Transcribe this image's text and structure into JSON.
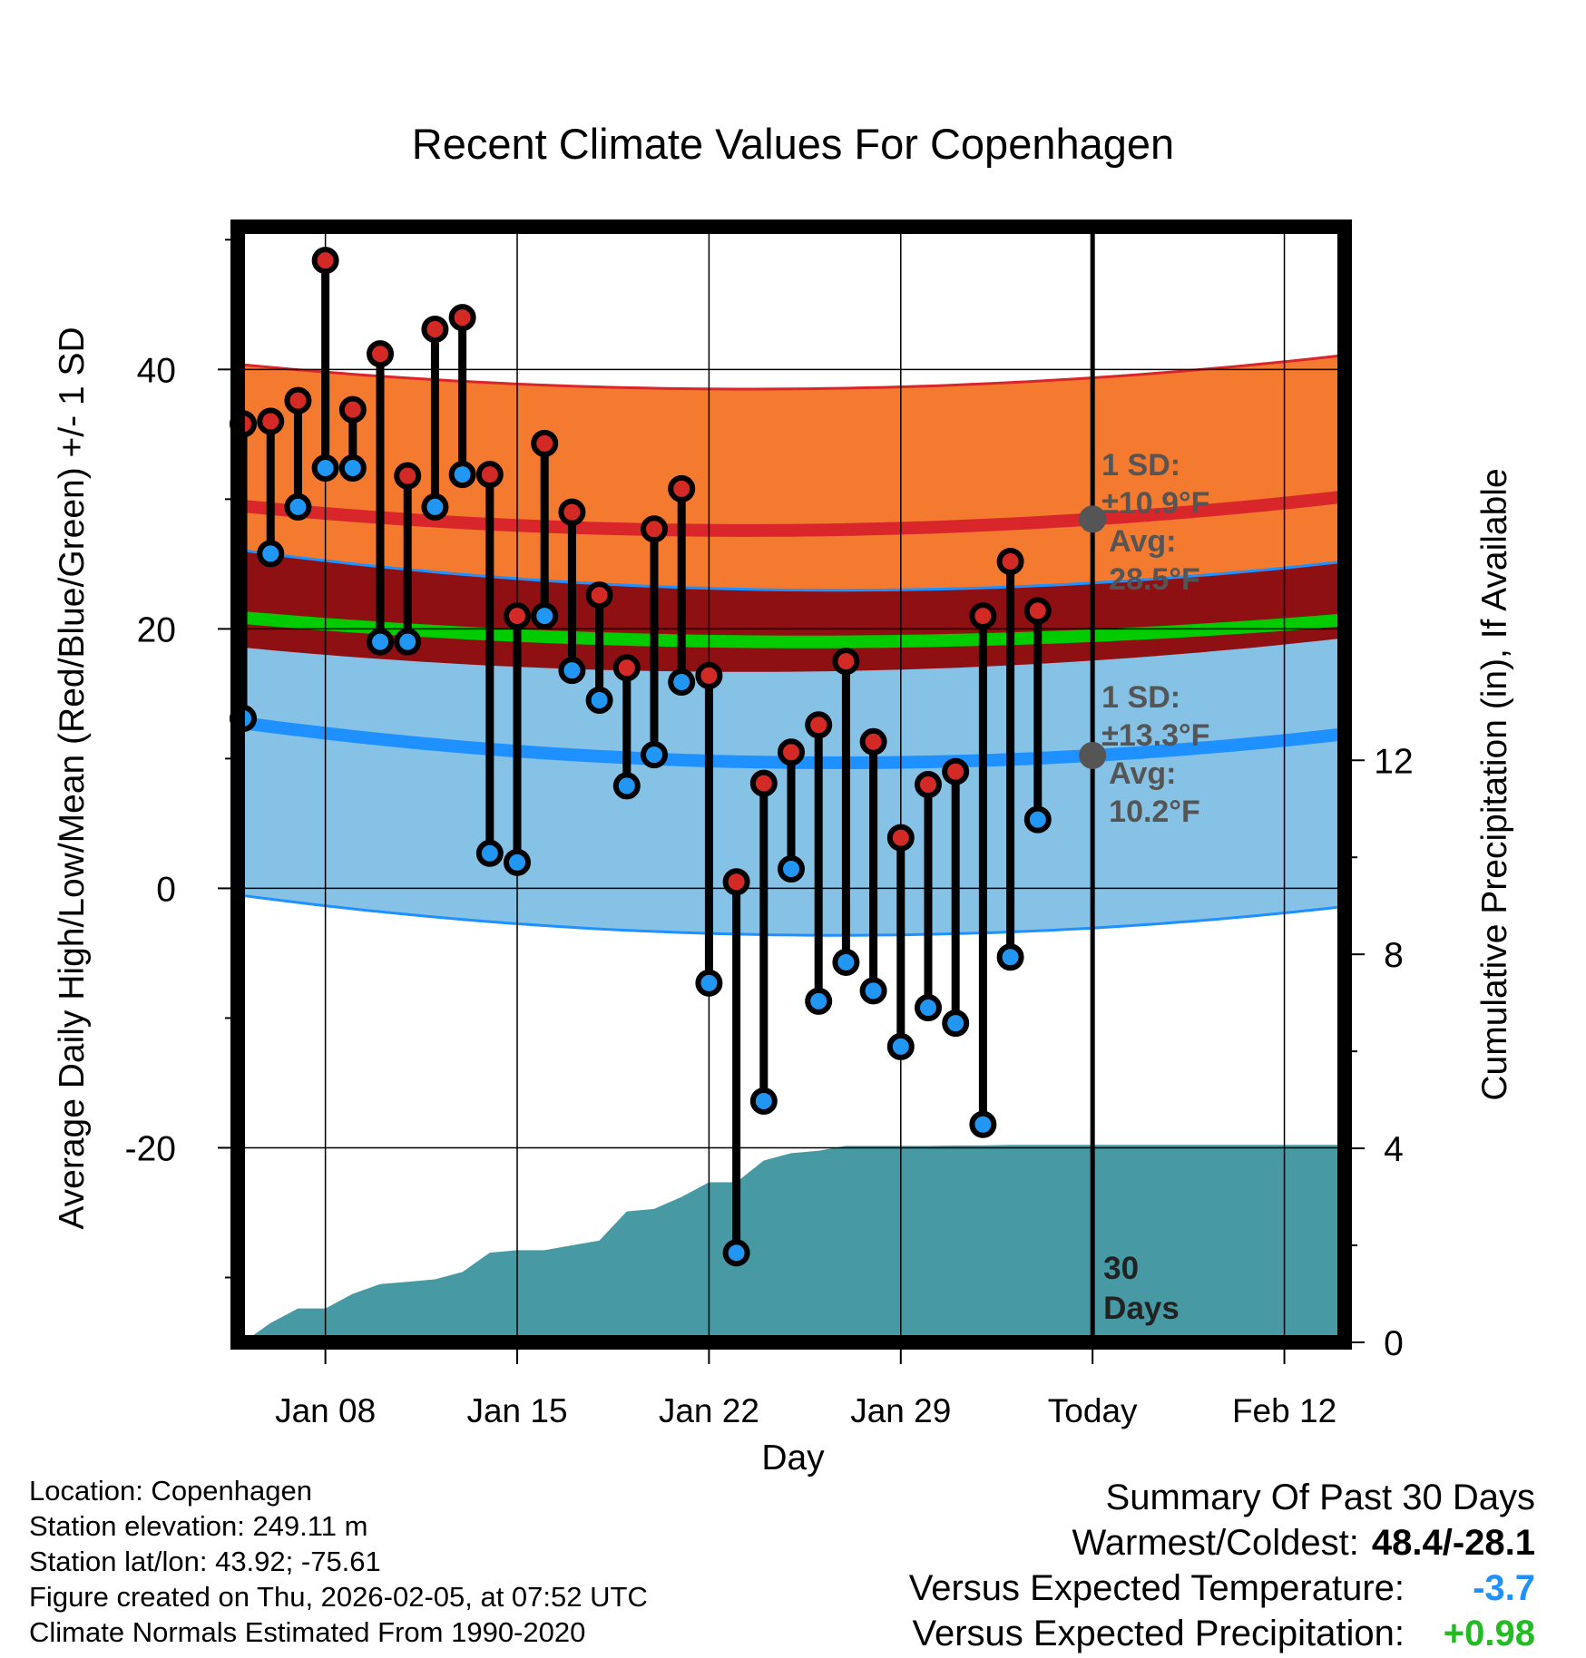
{
  "chart_data": {
    "type": "line",
    "title": "Recent Climate Values For Copenhagen",
    "xlabel": "Day",
    "ylabel": "Average Daily High/Low/Mean (Red/Blue/Green) +/- 1 SD",
    "y2label": "Cumulative Precipitation (in), If Available",
    "x_ticks": [
      {
        "day": 4,
        "label": "Jan 08"
      },
      {
        "day": 11,
        "label": "Jan 15"
      },
      {
        "day": 18,
        "label": "Jan 22"
      },
      {
        "day": 25,
        "label": "Jan 29"
      },
      {
        "day": 32,
        "label": "Today"
      },
      {
        "day": 39,
        "label": "Feb 12"
      }
    ],
    "xlim": [
      0.8,
      41.2
    ],
    "ylim": [
      -35,
      51
    ],
    "y_ticks": [
      -20,
      0,
      20,
      40
    ],
    "y2lim": [
      0,
      23
    ],
    "y2_ticks": [
      0,
      4,
      8,
      12
    ],
    "today_day": 32,
    "window_label": [
      "30",
      "Days"
    ],
    "high_points": [
      35.8,
      36.0,
      37.6,
      48.4,
      36.9,
      41.2,
      31.8,
      43.1,
      44.0,
      31.9,
      21.0,
      34.3,
      29.0,
      22.6,
      17.0,
      27.7,
      30.8,
      16.4,
      0.5,
      8.1,
      10.5,
      12.6,
      17.5,
      11.3,
      3.9,
      8.0,
      9.0,
      21.0,
      25.2,
      21.4
    ],
    "low_points": [
      13.1,
      25.8,
      29.4,
      32.4,
      32.4,
      19.0,
      19.0,
      29.4,
      31.9,
      2.7,
      2.0,
      21.0,
      16.8,
      14.5,
      7.9,
      10.3,
      15.9,
      -7.3,
      -28.1,
      -16.4,
      1.5,
      -8.7,
      -5.7,
      -7.9,
      -12.2,
      -9.2,
      -10.4,
      -18.2,
      -5.3,
      5.3
    ],
    "normal_high_mean_start": 29.5,
    "normal_high_mean_min": 27.6,
    "normal_high_mean_end": 30.2,
    "normal_high_sd": 10.9,
    "normal_low_mean_start": 12.8,
    "normal_low_mean_min": 9.7,
    "normal_low_mean_end": 11.9,
    "normal_low_sd": 13.3,
    "normal_mean_start": 20.9,
    "normal_mean_min": 19.0,
    "normal_mean_end": 20.7,
    "cumulative_precip": [
      0.0,
      0.4,
      0.7,
      0.7,
      1.0,
      1.2,
      1.25,
      1.3,
      1.45,
      1.85,
      1.9,
      1.9,
      2.0,
      2.1,
      2.7,
      2.75,
      3.0,
      3.3,
      3.3,
      3.75,
      3.9,
      3.95,
      4.05,
      4.05,
      4.05,
      4.05,
      4.06,
      4.06,
      4.07,
      4.07,
      4.07,
      4.07,
      4.07
    ],
    "high_annotation": [
      "1 SD:",
      "±10.9°F",
      "Avg:",
      "28.5°F"
    ],
    "low_annotation": [
      "1 SD:",
      "±13.3°F",
      "Avg:",
      "10.2°F"
    ],
    "colors": {
      "high_band": "#f47a30",
      "high_line": "#d8262a",
      "overlap_band": "#8f1013",
      "mean_line": "#00cc00",
      "low_band": "#86c2e6",
      "low_line": "#1e90ff",
      "precip": "#479aa3",
      "high_marker": "#d42a26",
      "low_marker": "#2196f3",
      "annotation": "#555555"
    }
  },
  "footer": {
    "location": "Location: Copenhagen",
    "elevation": "Station elevation: 249.11 m",
    "latlon": "Station lat/lon: 43.92; -75.61",
    "created": "Figure created on Thu, 2026-02-05, at 07:52 UTC",
    "normals": "Climate Normals Estimated From 1990-2020"
  },
  "summary": {
    "title": "Summary Of Past 30 Days",
    "warm_cold_label": "Warmest/Coldest:",
    "warm_cold_value": "48.4/-28.1",
    "temp_label": "Versus Expected Temperature:",
    "temp_value": "-3.7",
    "temp_color": "#1e90ff",
    "precip_label": "Versus Expected Precipitation:",
    "precip_value": "+0.98",
    "precip_color": "#22bb22"
  }
}
